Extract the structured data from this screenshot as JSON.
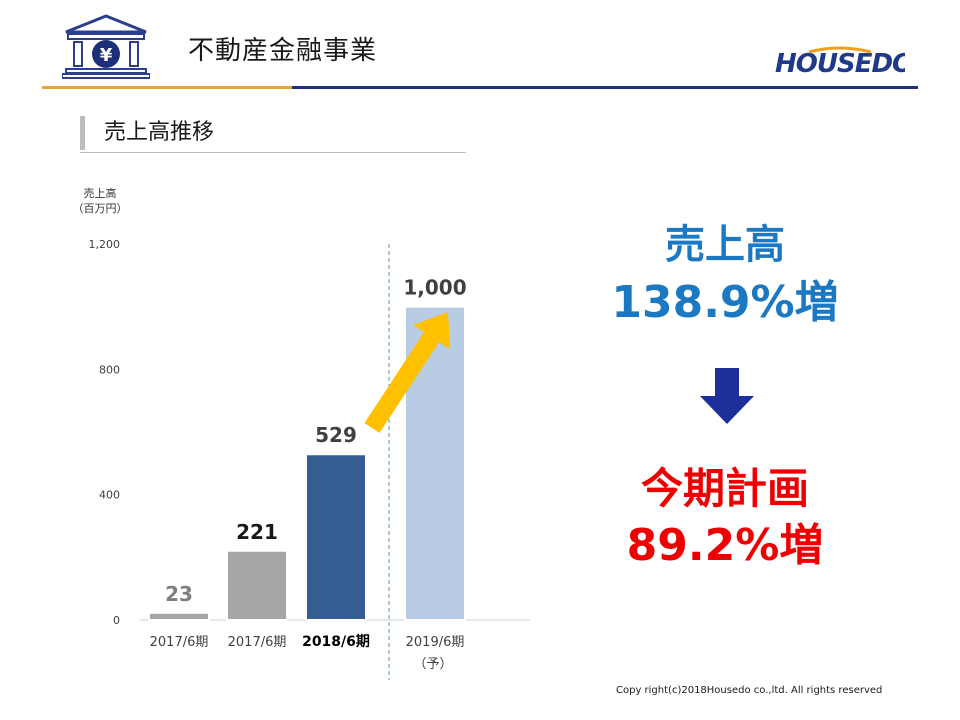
{
  "header": {
    "title": "不動産金融事業",
    "brand": "HOUSEDO",
    "logo_icon": "bank-yen-icon",
    "logo_glyph": "¥"
  },
  "section": {
    "title": "売上高推移"
  },
  "chart_data": {
    "type": "bar",
    "ylabel_line1": "売上高",
    "ylabel_line2": "（百万円）",
    "ylim": [
      0,
      1200
    ],
    "yticks": [
      0,
      400,
      800,
      1200
    ],
    "ytick_labels": [
      "0",
      "400",
      "800",
      "1,200"
    ],
    "categories": [
      "2017/6期",
      "2017/6期",
      "2018/6期",
      "2019/6期"
    ],
    "category_sub": [
      "",
      "",
      "",
      "（予）"
    ],
    "values": [
      23,
      221,
      529,
      1000
    ],
    "value_labels": [
      "23",
      "221",
      "529",
      "1,000"
    ],
    "bar_colors": [
      "#a6a6a6",
      "#a6a6a6",
      "#355d91",
      "#b8cce4"
    ],
    "label_colors": [
      "#7f7f7f",
      "#1a1a1a",
      "#404040",
      "#404040"
    ],
    "category_bold": [
      false,
      false,
      true,
      false
    ],
    "forecast_divider": true,
    "growth_arrow": "yellow up-right arrow from 2018/6期 to 2019/6期"
  },
  "kpi": {
    "sales_label": "売上高",
    "sales_growth": "138.9%増",
    "plan_label": "今期計画",
    "plan_growth": "89.2%増",
    "arrow_icon": "down-arrow-icon"
  },
  "colors": {
    "blue_text": "#1b78c2",
    "red_text": "#ee0000",
    "navy": "#1c2f78",
    "orange": "#e8a33a",
    "arrow_yellow": "#ffc000"
  },
  "footer": {
    "copyright": "Copy right(c)2018Housedo co.,ltd. All rights reserved"
  }
}
